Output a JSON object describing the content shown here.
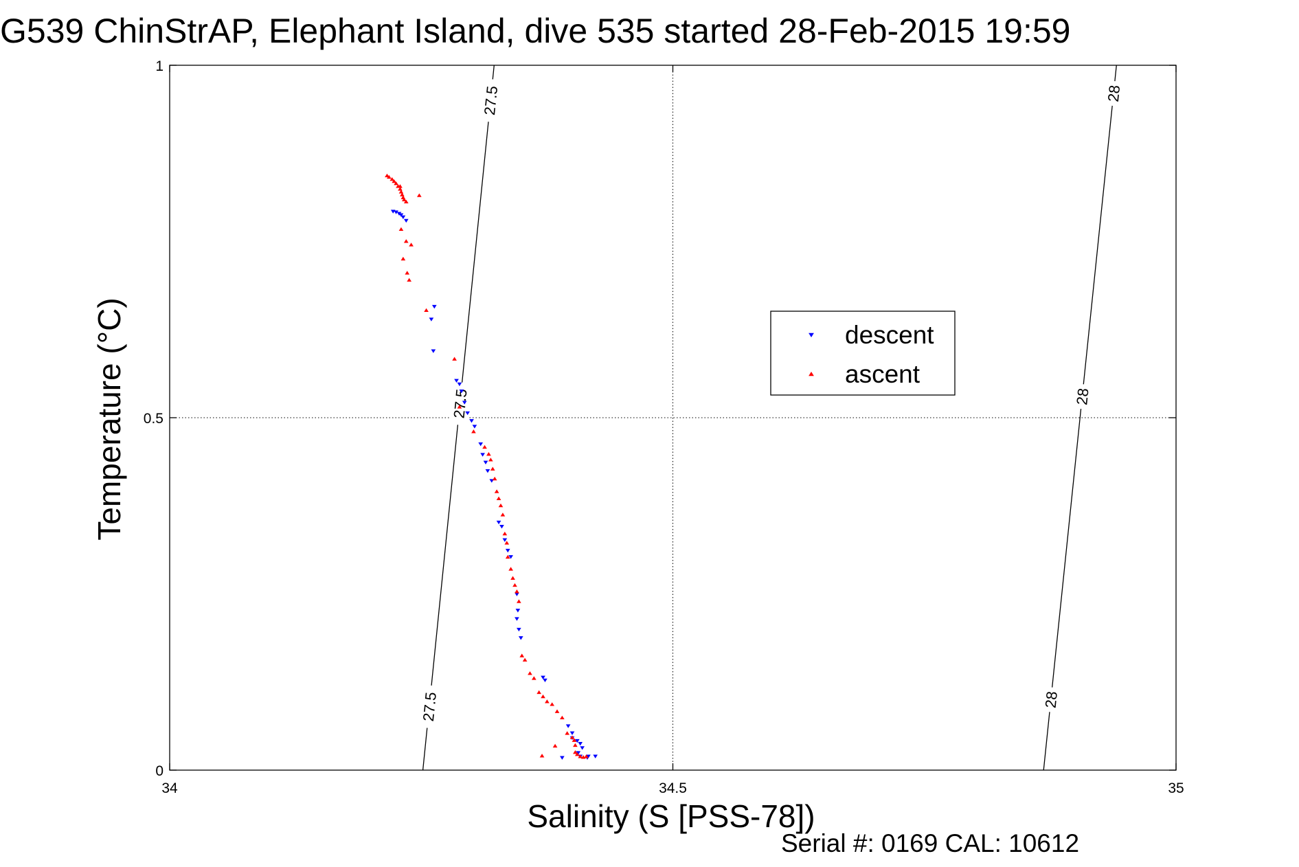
{
  "title": "G539 ChinStrAP, Elephant Island, dive 535 started 28-Feb-2015 19:59",
  "footer": {
    "serial": "Serial #: 0169 CAL: 10612"
  },
  "colors": {
    "descent": "#0000ff",
    "ascent": "#ff0000",
    "axes": "#000000",
    "grid": "#000000"
  },
  "chart_data": {
    "type": "scatter",
    "title": "G539 ChinStrAP, Elephant Island, dive 535 started 28-Feb-2015 19:59",
    "xlabel": "Salinity (S [PSS-78])",
    "ylabel": "Temperature (°C)",
    "xlim": [
      34,
      35
    ],
    "ylim": [
      0,
      1
    ],
    "xticks": [
      34,
      34.5,
      35
    ],
    "xtick_labels": [
      "34",
      "34.5",
      "35"
    ],
    "yticks": [
      0,
      0.5,
      1
    ],
    "ytick_labels": [
      "0",
      "0.5",
      "1"
    ],
    "grid": true,
    "legend_position": "center-right",
    "series": [
      {
        "name": "descent",
        "marker": "triangle-down",
        "color": "#0000ff",
        "points": [
          [
            34.222,
            0.793
          ],
          [
            34.225,
            0.792
          ],
          [
            34.228,
            0.79
          ],
          [
            34.23,
            0.788
          ],
          [
            34.232,
            0.785
          ],
          [
            34.235,
            0.78
          ],
          [
            34.263,
            0.658
          ],
          [
            34.26,
            0.64
          ],
          [
            34.262,
            0.595
          ],
          [
            34.285,
            0.553
          ],
          [
            34.288,
            0.548
          ],
          [
            34.29,
            0.538
          ],
          [
            34.293,
            0.522
          ],
          [
            34.296,
            0.507
          ],
          [
            34.3,
            0.496
          ],
          [
            34.303,
            0.488
          ],
          [
            34.309,
            0.463
          ],
          [
            34.311,
            0.448
          ],
          [
            34.314,
            0.437
          ],
          [
            34.316,
            0.425
          ],
          [
            34.32,
            0.411
          ],
          [
            34.327,
            0.352
          ],
          [
            34.33,
            0.346
          ],
          [
            34.333,
            0.327
          ],
          [
            34.336,
            0.312
          ],
          [
            34.339,
            0.303
          ],
          [
            34.345,
            0.25
          ],
          [
            34.346,
            0.227
          ],
          [
            34.345,
            0.215
          ],
          [
            34.347,
            0.2
          ],
          [
            34.349,
            0.188
          ],
          [
            34.371,
            0.132
          ],
          [
            34.373,
            0.128
          ],
          [
            34.396,
            0.063
          ],
          [
            34.4,
            0.053
          ],
          [
            34.405,
            0.042
          ],
          [
            34.408,
            0.038
          ],
          [
            34.41,
            0.032
          ],
          [
            34.408,
            0.02
          ],
          [
            34.415,
            0.018
          ],
          [
            34.416,
            0.02
          ],
          [
            34.423,
            0.02
          ],
          [
            34.39,
            0.018
          ],
          [
            34.406,
            0.025
          ],
          [
            34.4,
            0.046
          ]
        ]
      },
      {
        "name": "ascent",
        "marker": "triangle-up",
        "color": "#ff0000",
        "points": [
          [
            34.216,
            0.843
          ],
          [
            34.218,
            0.841
          ],
          [
            34.221,
            0.838
          ],
          [
            34.223,
            0.835
          ],
          [
            34.225,
            0.832
          ],
          [
            34.227,
            0.828
          ],
          [
            34.229,
            0.824
          ],
          [
            34.23,
            0.82
          ],
          [
            34.231,
            0.816
          ],
          [
            34.232,
            0.812
          ],
          [
            34.233,
            0.809
          ],
          [
            34.235,
            0.806
          ],
          [
            34.229,
            0.828
          ],
          [
            34.248,
            0.815
          ],
          [
            34.23,
            0.767
          ],
          [
            34.235,
            0.75
          ],
          [
            34.24,
            0.745
          ],
          [
            34.232,
            0.725
          ],
          [
            34.236,
            0.705
          ],
          [
            34.238,
            0.695
          ],
          [
            34.255,
            0.652
          ],
          [
            34.283,
            0.583
          ],
          [
            34.288,
            0.515
          ],
          [
            34.302,
            0.48
          ],
          [
            34.313,
            0.458
          ],
          [
            34.317,
            0.448
          ],
          [
            34.319,
            0.44
          ],
          [
            34.321,
            0.427
          ],
          [
            34.323,
            0.413
          ],
          [
            34.325,
            0.395
          ],
          [
            34.327,
            0.385
          ],
          [
            34.329,
            0.375
          ],
          [
            34.331,
            0.362
          ],
          [
            34.333,
            0.335
          ],
          [
            34.335,
            0.322
          ],
          [
            34.336,
            0.302
          ],
          [
            34.339,
            0.285
          ],
          [
            34.341,
            0.272
          ],
          [
            34.343,
            0.262
          ],
          [
            34.345,
            0.253
          ],
          [
            34.347,
            0.239
          ],
          [
            34.35,
            0.162
          ],
          [
            34.353,
            0.156
          ],
          [
            34.358,
            0.137
          ],
          [
            34.362,
            0.13
          ],
          [
            34.367,
            0.11
          ],
          [
            34.371,
            0.104
          ],
          [
            34.375,
            0.097
          ],
          [
            34.38,
            0.093
          ],
          [
            34.385,
            0.083
          ],
          [
            34.39,
            0.074
          ],
          [
            34.395,
            0.052
          ],
          [
            34.4,
            0.046
          ],
          [
            34.403,
            0.035
          ],
          [
            34.403,
            0.025
          ],
          [
            34.405,
            0.022
          ],
          [
            34.408,
            0.019
          ],
          [
            34.411,
            0.018
          ],
          [
            34.414,
            0.019
          ],
          [
            34.383,
            0.034
          ],
          [
            34.37,
            0.02
          ],
          [
            34.402,
            0.042
          ]
        ]
      }
    ],
    "contours": [
      {
        "value": 27.5,
        "label": "27.5",
        "x_at_0": 34.2516,
        "x_at_1": 34.3224
      },
      {
        "value": 28,
        "label": "28",
        "x_at_0": 34.8684,
        "x_at_1": 34.9408
      }
    ],
    "contour_label_positions": [
      {
        "contour": 27.5,
        "label": "27.5",
        "y": 0.09
      },
      {
        "contour": 27.5,
        "label": "27.5",
        "y": 0.52
      },
      {
        "contour": 27.5,
        "label": "27.5",
        "y": 0.95
      },
      {
        "contour": 28,
        "label": "28",
        "y": 0.1
      },
      {
        "contour": 28,
        "label": "28",
        "y": 0.53
      },
      {
        "contour": 28,
        "label": "28",
        "y": 0.96
      }
    ]
  }
}
